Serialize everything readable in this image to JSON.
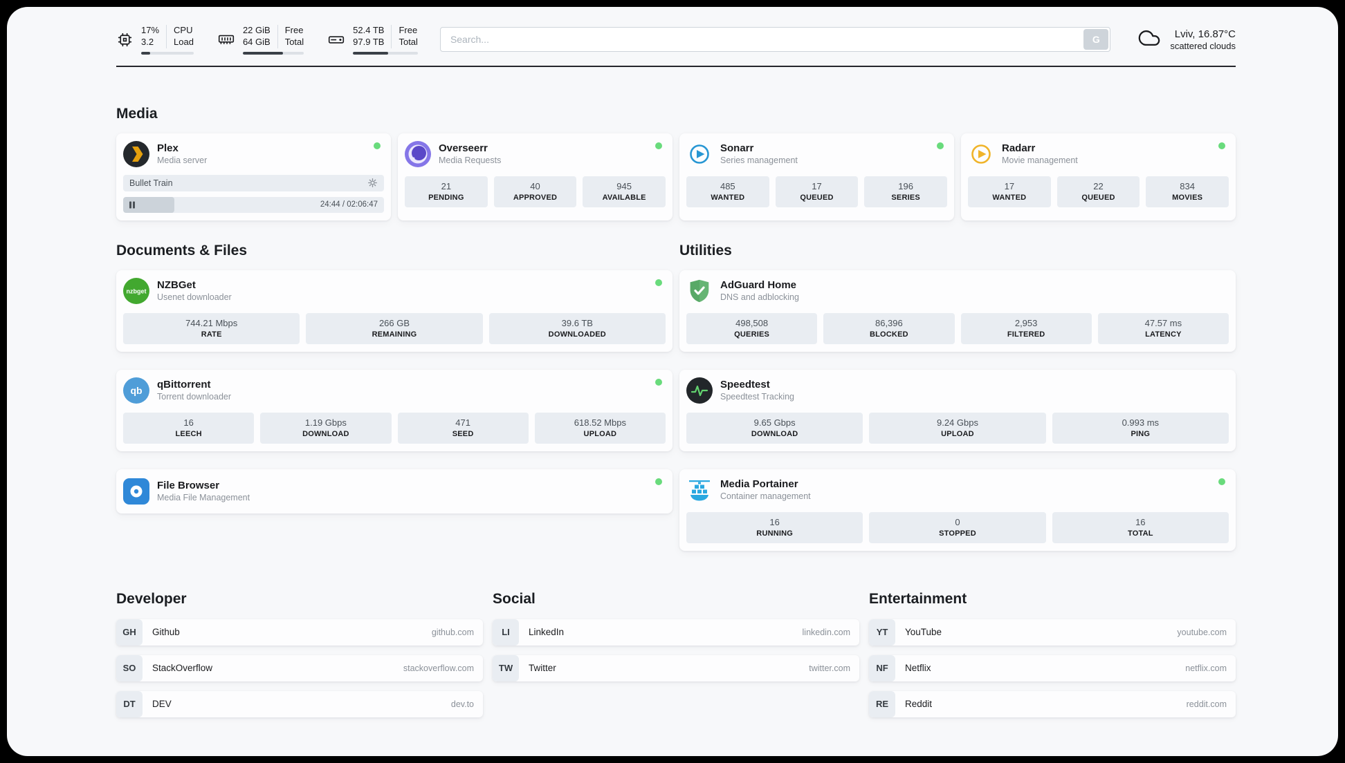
{
  "colors": {
    "page_bg": "#f7f8fa",
    "card_bg": "#fdfdfe",
    "pill_bg": "#e9edf2",
    "status_green": "#69db7c",
    "text_dark": "#1a1b1e",
    "text_muted": "#8b9199"
  },
  "topbar": {
    "cpu": {
      "percent": "17%",
      "load": "3.2",
      "label_top": "CPU",
      "label_bottom": "Load",
      "bar_percent": 17
    },
    "memory": {
      "free": "22 GiB",
      "total": "64 GiB",
      "label_top": "Free",
      "label_bottom": "Total",
      "bar_percent": 66
    },
    "disk": {
      "free": "52.4 TB",
      "total": "97.9 TB",
      "label_top": "Free",
      "label_bottom": "Total",
      "bar_percent": 54
    },
    "search": {
      "placeholder": "Search...",
      "button_label": "G"
    },
    "weather": {
      "location": "Lviv, 16.87°C",
      "condition": "scattered clouds"
    }
  },
  "media": {
    "heading": "Media",
    "plex": {
      "name": "Plex",
      "subtitle": "Media server",
      "now_playing": "Bullet Train",
      "time": "24:44 / 02:06:47",
      "progress_percent": 19.5
    },
    "overseerr": {
      "name": "Overseerr",
      "subtitle": "Media Requests",
      "stats": [
        {
          "value": "21",
          "label": "PENDING"
        },
        {
          "value": "40",
          "label": "APPROVED"
        },
        {
          "value": "945",
          "label": "AVAILABLE"
        }
      ]
    },
    "sonarr": {
      "name": "Sonarr",
      "subtitle": "Series management",
      "stats": [
        {
          "value": "485",
          "label": "WANTED"
        },
        {
          "value": "17",
          "label": "QUEUED"
        },
        {
          "value": "196",
          "label": "SERIES"
        }
      ]
    },
    "radarr": {
      "name": "Radarr",
      "subtitle": "Movie management",
      "stats": [
        {
          "value": "17",
          "label": "WANTED"
        },
        {
          "value": "22",
          "label": "QUEUED"
        },
        {
          "value": "834",
          "label": "MOVIES"
        }
      ]
    }
  },
  "documents": {
    "heading": "Documents & Files",
    "nzbget": {
      "name": "NZBGet",
      "subtitle": "Usenet downloader",
      "icon_text": "nzbget",
      "stats": [
        {
          "value": "744.21 Mbps",
          "label": "RATE"
        },
        {
          "value": "266 GB",
          "label": "REMAINING"
        },
        {
          "value": "39.6 TB",
          "label": "DOWNLOADED"
        }
      ]
    },
    "qbittorrent": {
      "name": "qBittorrent",
      "subtitle": "Torrent downloader",
      "icon_text": "qb",
      "stats": [
        {
          "value": "16",
          "label": "LEECH"
        },
        {
          "value": "1.19 Gbps",
          "label": "DOWNLOAD"
        },
        {
          "value": "471",
          "label": "SEED"
        },
        {
          "value": "618.52 Mbps",
          "label": "UPLOAD"
        }
      ]
    },
    "filebrowser": {
      "name": "File Browser",
      "subtitle": "Media File Management"
    }
  },
  "utilities": {
    "heading": "Utilities",
    "adguard": {
      "name": "AdGuard Home",
      "subtitle": "DNS and adblocking",
      "stats": [
        {
          "value": "498,508",
          "label": "QUERIES"
        },
        {
          "value": "86,396",
          "label": "BLOCKED"
        },
        {
          "value": "2,953",
          "label": "FILTERED"
        },
        {
          "value": "47.57 ms",
          "label": "LATENCY"
        }
      ]
    },
    "speedtest": {
      "name": "Speedtest",
      "subtitle": "Speedtest Tracking",
      "stats": [
        {
          "value": "9.65 Gbps",
          "label": "DOWNLOAD"
        },
        {
          "value": "9.24 Gbps",
          "label": "UPLOAD"
        },
        {
          "value": "0.993 ms",
          "label": "PING"
        }
      ]
    },
    "portainer": {
      "name": "Media Portainer",
      "subtitle": "Container management",
      "stats": [
        {
          "value": "16",
          "label": "RUNNING"
        },
        {
          "value": "0",
          "label": "STOPPED"
        },
        {
          "value": "16",
          "label": "TOTAL"
        }
      ]
    }
  },
  "links": {
    "developer": {
      "heading": "Developer",
      "items": [
        {
          "abbr": "GH",
          "name": "Github",
          "url": "github.com"
        },
        {
          "abbr": "SO",
          "name": "StackOverflow",
          "url": "stackoverflow.com"
        },
        {
          "abbr": "DT",
          "name": "DEV",
          "url": "dev.to"
        }
      ]
    },
    "social": {
      "heading": "Social",
      "items": [
        {
          "abbr": "LI",
          "name": "LinkedIn",
          "url": "linkedin.com"
        },
        {
          "abbr": "TW",
          "name": "Twitter",
          "url": "twitter.com"
        }
      ]
    },
    "entertainment": {
      "heading": "Entertainment",
      "items": [
        {
          "abbr": "YT",
          "name": "YouTube",
          "url": "youtube.com"
        },
        {
          "abbr": "NF",
          "name": "Netflix",
          "url": "netflix.com"
        },
        {
          "abbr": "RE",
          "name": "Reddit",
          "url": "reddit.com"
        }
      ]
    }
  }
}
